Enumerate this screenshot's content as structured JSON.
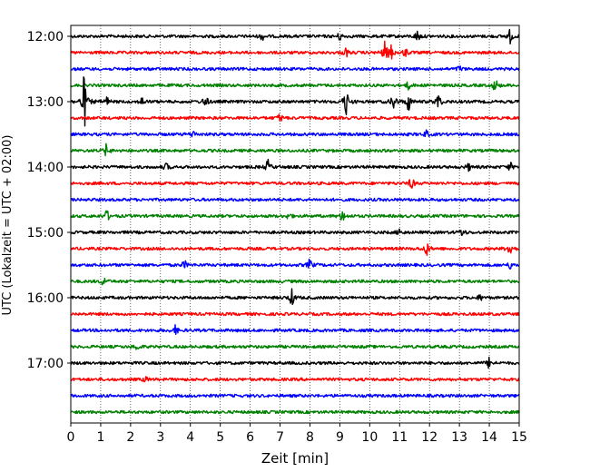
{
  "chart_data": {
    "type": "line",
    "title": "",
    "xlabel": "Zeit  [min]",
    "ylabel": "UTC (Lokalzeit = UTC + 02:00)",
    "xlim": [
      0,
      15
    ],
    "x_ticks": [
      "0",
      "1",
      "2",
      "3",
      "4",
      "5",
      "6",
      "7",
      "8",
      "9",
      "10",
      "11",
      "12",
      "13",
      "14",
      "15"
    ],
    "y_ticks": [
      "12:00",
      "13:00",
      "14:00",
      "15:00",
      "16:00",
      "17:00"
    ],
    "grid": "vertical-dotted",
    "trace_colors": [
      "#000000",
      "#ff0000",
      "#0000ff",
      "#008000"
    ],
    "traces_per_hour": 4,
    "minutes_per_trace": 15,
    "traces": [
      {
        "start": "12:00",
        "events": [
          {
            "t": 6.4,
            "a": 0.3
          },
          {
            "t": 9.0,
            "a": 0.35
          },
          {
            "t": 11.6,
            "a": 0.5
          },
          {
            "t": 14.7,
            "a": 0.6
          }
        ]
      },
      {
        "start": "12:15",
        "events": [
          {
            "t": 9.2,
            "a": 0.4
          },
          {
            "t": 10.5,
            "a": 0.9
          },
          {
            "t": 10.7,
            "a": 0.7
          },
          {
            "t": 11.2,
            "a": 0.4
          }
        ]
      },
      {
        "start": "12:30",
        "events": [
          {
            "t": 13.0,
            "a": 0.25
          }
        ]
      },
      {
        "start": "12:45",
        "events": [
          {
            "t": 11.3,
            "a": 0.35
          },
          {
            "t": 14.2,
            "a": 0.6
          }
        ]
      },
      {
        "start": "13:00",
        "events": [
          {
            "t": 0.45,
            "a": 2.5
          },
          {
            "t": 1.2,
            "a": 0.4
          },
          {
            "t": 2.4,
            "a": 0.4
          },
          {
            "t": 4.5,
            "a": 0.6
          },
          {
            "t": 9.2,
            "a": 1.3
          },
          {
            "t": 10.8,
            "a": 0.9
          },
          {
            "t": 11.3,
            "a": 0.8
          },
          {
            "t": 12.3,
            "a": 0.8
          }
        ]
      },
      {
        "start": "13:15",
        "events": [
          {
            "t": 7.0,
            "a": 0.35
          }
        ]
      },
      {
        "start": "13:30",
        "events": [
          {
            "t": 4.1,
            "a": 0.3
          },
          {
            "t": 11.9,
            "a": 0.3
          }
        ]
      },
      {
        "start": "13:45",
        "events": [
          {
            "t": 1.2,
            "a": 0.6
          }
        ]
      },
      {
        "start": "14:00",
        "events": [
          {
            "t": 3.2,
            "a": 0.3
          },
          {
            "t": 6.6,
            "a": 0.6
          },
          {
            "t": 13.3,
            "a": 0.3
          },
          {
            "t": 14.7,
            "a": 0.35
          }
        ]
      },
      {
        "start": "14:15",
        "events": [
          {
            "t": 11.4,
            "a": 0.55
          }
        ]
      },
      {
        "start": "14:30",
        "events": []
      },
      {
        "start": "14:45",
        "events": [
          {
            "t": 1.2,
            "a": 0.5
          },
          {
            "t": 7.3,
            "a": 0.3
          },
          {
            "t": 9.1,
            "a": 0.5
          }
        ]
      },
      {
        "start": "15:00",
        "events": [
          {
            "t": 11.0,
            "a": 0.35
          },
          {
            "t": 13.1,
            "a": 0.4
          }
        ]
      },
      {
        "start": "15:15",
        "events": [
          {
            "t": 11.9,
            "a": 0.6
          },
          {
            "t": 14.7,
            "a": 0.7
          }
        ]
      },
      {
        "start": "15:30",
        "events": [
          {
            "t": 3.8,
            "a": 0.35
          },
          {
            "t": 8.0,
            "a": 0.5
          },
          {
            "t": 14.7,
            "a": 0.3
          }
        ]
      },
      {
        "start": "15:45",
        "events": [
          {
            "t": 1.1,
            "a": 0.4
          }
        ]
      },
      {
        "start": "16:00",
        "events": [
          {
            "t": 7.4,
            "a": 0.75
          },
          {
            "t": 13.7,
            "a": 0.25
          }
        ]
      },
      {
        "start": "16:15",
        "events": []
      },
      {
        "start": "16:30",
        "events": [
          {
            "t": 3.5,
            "a": 0.4
          }
        ]
      },
      {
        "start": "16:45",
        "events": [
          {
            "t": 2.2,
            "a": 0.3
          }
        ]
      },
      {
        "start": "17:00",
        "events": [
          {
            "t": 14.0,
            "a": 0.45
          }
        ]
      },
      {
        "start": "17:15",
        "events": [
          {
            "t": 2.5,
            "a": 0.2
          }
        ]
      },
      {
        "start": "17:30",
        "events": []
      },
      {
        "start": "17:45",
        "events": []
      }
    ]
  }
}
